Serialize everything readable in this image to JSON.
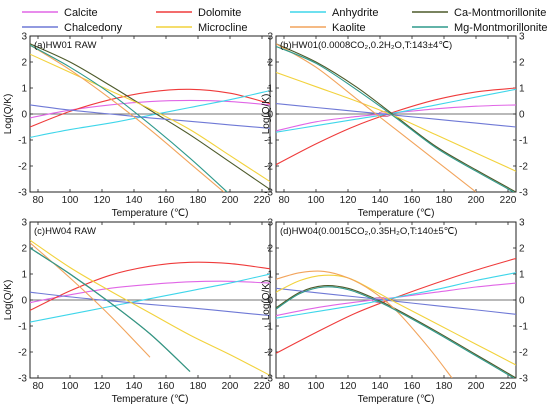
{
  "legend": [
    {
      "name": "Calcite",
      "color": "#e066e6"
    },
    {
      "name": "Dolomite",
      "color": "#ef3b3b"
    },
    {
      "name": "Anhydrite",
      "color": "#3fd6ea"
    },
    {
      "name": "Ca-Montmorillonite",
      "color": "#4d5a2a"
    },
    {
      "name": "Chalcedony",
      "color": "#6f79d6"
    },
    {
      "name": "Microcline",
      "color": "#f2d23c"
    },
    {
      "name": "Kaolite",
      "color": "#f2a45c"
    },
    {
      "name": "Mg-Montmorillonite",
      "color": "#2f9a8c"
    }
  ],
  "chart_data": [
    {
      "type": "line",
      "title": "(a)HW01 RAW",
      "xlabel": "",
      "ylabel": "Log(Q/K)",
      "xlim": [
        75,
        225
      ],
      "ylim": [
        -3,
        3
      ],
      "xticks": [
        80,
        100,
        120,
        140,
        160,
        180,
        200,
        220
      ],
      "yticks": [
        -3,
        -2,
        -1,
        0,
        1,
        2,
        3
      ],
      "series": [
        {
          "name": "Calcite",
          "x": [
            75,
            100,
            125,
            150,
            175,
            200,
            225
          ],
          "y": [
            -0.15,
            0.15,
            0.35,
            0.48,
            0.52,
            0.48,
            0.35
          ]
        },
        {
          "name": "Dolomite",
          "x": [
            75,
            100,
            125,
            150,
            175,
            200,
            225
          ],
          "y": [
            -0.5,
            0.1,
            0.55,
            0.85,
            0.95,
            0.8,
            0.4
          ]
        },
        {
          "name": "Anhydrite",
          "x": [
            75,
            100,
            125,
            150,
            175,
            200,
            225
          ],
          "y": [
            -0.9,
            -0.6,
            -0.35,
            -0.05,
            0.25,
            0.55,
            0.9
          ]
        },
        {
          "name": "Ca-Montmorillonite",
          "x": [
            75,
            100,
            125,
            150,
            175,
            200,
            225
          ],
          "y": [
            2.7,
            2.0,
            1.1,
            0.15,
            -0.8,
            -1.85,
            -2.9
          ]
        },
        {
          "name": "Chalcedony",
          "x": [
            75,
            100,
            125,
            150,
            175,
            200,
            225
          ],
          "y": [
            0.35,
            0.15,
            0.0,
            -0.15,
            -0.28,
            -0.42,
            -0.55
          ]
        },
        {
          "name": "Microcline",
          "x": [
            75,
            100,
            125,
            150,
            175,
            200,
            225
          ],
          "y": [
            2.3,
            1.6,
            0.9,
            0.2,
            -0.6,
            -1.6,
            -2.6
          ]
        },
        {
          "name": "Kaolite",
          "x": [
            75,
            100,
            125,
            150,
            175,
            200
          ],
          "y": [
            2.65,
            1.7,
            0.6,
            -0.6,
            -1.9,
            -3.2
          ]
        },
        {
          "name": "Mg-Montmorillonite",
          "x": [
            75,
            100,
            125,
            150,
            175,
            200
          ],
          "y": [
            2.65,
            1.8,
            0.8,
            -0.4,
            -1.7,
            -3.1
          ]
        }
      ]
    },
    {
      "type": "line",
      "title": "(b)HW01(0.0008CO₂,0.2H₂O,T:143±4℃)",
      "xlabel": "",
      "ylabel": "",
      "xlim": [
        75,
        225
      ],
      "ylim": [
        -3,
        3
      ],
      "xticks": [
        80,
        100,
        120,
        140,
        160,
        180,
        200,
        220
      ],
      "yticks": [
        -3,
        -2,
        -1,
        0,
        1,
        2,
        3
      ],
      "annotation": {
        "x": 143,
        "y": 0,
        "rx": 4,
        "ry": 0.1
      },
      "series": [
        {
          "name": "Calcite",
          "x": [
            75,
            100,
            125,
            150,
            175,
            200,
            225
          ],
          "y": [
            -0.65,
            -0.3,
            -0.1,
            0.05,
            0.2,
            0.3,
            0.35
          ]
        },
        {
          "name": "Dolomite",
          "x": [
            75,
            100,
            125,
            150,
            175,
            200,
            225
          ],
          "y": [
            -1.95,
            -1.15,
            -0.45,
            0.1,
            0.55,
            0.85,
            1.0
          ]
        },
        {
          "name": "Anhydrite",
          "x": [
            75,
            100,
            125,
            150,
            175,
            200,
            225
          ],
          "y": [
            -0.7,
            -0.45,
            -0.2,
            0.05,
            0.35,
            0.65,
            0.95
          ]
        },
        {
          "name": "Ca-Montmorillonite",
          "x": [
            75,
            100,
            125,
            150,
            175,
            200,
            225
          ],
          "y": [
            2.7,
            2.0,
            1.05,
            -0.1,
            -1.25,
            -2.15,
            -3.0
          ]
        },
        {
          "name": "Chalcedony",
          "x": [
            75,
            100,
            125,
            150,
            175,
            200,
            225
          ],
          "y": [
            0.4,
            0.25,
            0.1,
            -0.05,
            -0.2,
            -0.35,
            -0.5
          ]
        },
        {
          "name": "Microcline",
          "x": [
            75,
            100,
            125,
            150,
            175,
            200,
            225
          ],
          "y": [
            1.6,
            1.05,
            0.5,
            -0.1,
            -0.8,
            -1.5,
            -2.2
          ]
        },
        {
          "name": "Kaolite",
          "x": [
            75,
            100,
            125,
            150,
            175,
            200
          ],
          "y": [
            2.7,
            1.8,
            0.6,
            -0.6,
            -1.8,
            -3.0
          ]
        },
        {
          "name": "Mg-Montmorillonite",
          "x": [
            75,
            100,
            125,
            150,
            175,
            200,
            225
          ],
          "y": [
            2.6,
            1.95,
            0.95,
            -0.15,
            -1.3,
            -2.2,
            -3.05
          ]
        }
      ]
    },
    {
      "type": "line",
      "title": "(c)HW04 RAW",
      "xlabel": "Temperature (℃)",
      "ylabel": "Log(Q/K)",
      "xlim": [
        75,
        225
      ],
      "ylim": [
        -3,
        3
      ],
      "xticks": [
        80,
        100,
        120,
        140,
        160,
        180,
        200,
        220
      ],
      "yticks": [
        -3,
        -2,
        -1,
        0,
        1,
        2,
        3
      ],
      "series": [
        {
          "name": "Calcite",
          "x": [
            75,
            100,
            125,
            150,
            175,
            200,
            225
          ],
          "y": [
            -0.1,
            0.2,
            0.45,
            0.6,
            0.7,
            0.72,
            0.65
          ]
        },
        {
          "name": "Dolomite",
          "x": [
            75,
            100,
            125,
            150,
            175,
            200,
            225
          ],
          "y": [
            -0.4,
            0.35,
            0.95,
            1.3,
            1.45,
            1.4,
            1.2
          ]
        },
        {
          "name": "Anhydrite",
          "x": [
            75,
            100,
            125,
            150,
            175,
            200,
            225
          ],
          "y": [
            -0.85,
            -0.55,
            -0.25,
            0.05,
            0.35,
            0.65,
            1.0
          ]
        },
        {
          "name": "Ca-Montmorillonite",
          "x": [
            75,
            100,
            125,
            150,
            175
          ],
          "y": [
            2.0,
            1.0,
            -0.1,
            -1.3,
            -2.75
          ]
        },
        {
          "name": "Chalcedony",
          "x": [
            75,
            100,
            125,
            150,
            175,
            200,
            225
          ],
          "y": [
            0.3,
            0.12,
            -0.03,
            -0.17,
            -0.3,
            -0.45,
            -0.6
          ]
        },
        {
          "name": "Microcline",
          "x": [
            75,
            100,
            125,
            150,
            175,
            200,
            225
          ],
          "y": [
            2.3,
            1.25,
            0.35,
            -0.5,
            -1.35,
            -2.1,
            -2.9
          ]
        },
        {
          "name": "Kaolite",
          "x": [
            75,
            100,
            125,
            150
          ],
          "y": [
            2.2,
            0.85,
            -0.6,
            -2.2
          ]
        },
        {
          "name": "Mg-Montmorillonite",
          "x": [
            75,
            100,
            125,
            150,
            175
          ],
          "y": [
            2.0,
            1.0,
            -0.1,
            -1.3,
            -2.75
          ]
        }
      ]
    },
    {
      "type": "line",
      "title": "(d)HW04(0.0015CO₂,0.35H₂O,T:140±5℃)",
      "xlabel": "Temperature (℃)",
      "ylabel": "",
      "xlim": [
        75,
        225
      ],
      "ylim": [
        -3,
        3
      ],
      "xticks": [
        80,
        100,
        120,
        140,
        160,
        180,
        200,
        220
      ],
      "yticks": [
        -3,
        -2,
        -1,
        0,
        1,
        2,
        3
      ],
      "annotation": {
        "x": 140,
        "y": 0,
        "rx": 5,
        "ry": 0.1
      },
      "series": [
        {
          "name": "Calcite",
          "x": [
            75,
            100,
            125,
            150,
            175,
            200,
            225
          ],
          "y": [
            -0.6,
            -0.3,
            -0.08,
            0.1,
            0.3,
            0.5,
            0.65
          ]
        },
        {
          "name": "Dolomite",
          "x": [
            75,
            100,
            125,
            150,
            175,
            200,
            225
          ],
          "y": [
            -2.05,
            -1.25,
            -0.5,
            0.1,
            0.65,
            1.15,
            1.6
          ]
        },
        {
          "name": "Anhydrite",
          "x": [
            75,
            100,
            125,
            150,
            175,
            200,
            225
          ],
          "y": [
            -0.7,
            -0.45,
            -0.2,
            0.1,
            0.4,
            0.75,
            1.05
          ]
        },
        {
          "name": "Ca-Montmorillonite",
          "x": [
            75,
            90,
            105,
            120,
            135,
            150,
            175,
            200,
            225
          ],
          "y": [
            -0.3,
            0.3,
            0.55,
            0.45,
            0.1,
            -0.35,
            -1.2,
            -2.1,
            -3.0
          ]
        },
        {
          "name": "Chalcedony",
          "x": [
            75,
            100,
            125,
            150,
            175,
            200,
            225
          ],
          "y": [
            0.45,
            0.28,
            0.12,
            -0.05,
            -0.22,
            -0.38,
            -0.55
          ]
        },
        {
          "name": "Microcline",
          "x": [
            75,
            90,
            105,
            120,
            135,
            150,
            175,
            200,
            225
          ],
          "y": [
            0.3,
            0.75,
            0.95,
            0.85,
            0.4,
            -0.1,
            -0.9,
            -1.7,
            -2.5
          ]
        },
        {
          "name": "Kaolite",
          "x": [
            75,
            90,
            105,
            120,
            135,
            150,
            170,
            185
          ],
          "y": [
            0.8,
            1.05,
            1.1,
            0.85,
            0.35,
            -0.4,
            -1.8,
            -3.0
          ]
        },
        {
          "name": "Mg-Montmorillonite",
          "x": [
            75,
            90,
            105,
            120,
            135,
            150,
            175,
            200,
            225
          ],
          "y": [
            -0.35,
            0.25,
            0.5,
            0.4,
            0.05,
            -0.4,
            -1.25,
            -2.15,
            -3.05
          ]
        }
      ]
    }
  ]
}
